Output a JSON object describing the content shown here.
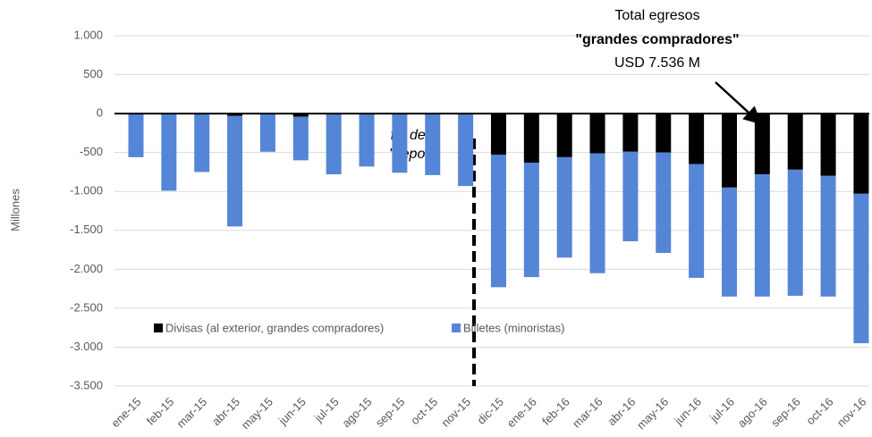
{
  "chart_data": {
    "type": "stacked-bar",
    "y_label": "Millones",
    "annotations": {
      "total_title": "Total egresos",
      "total_subject": "\"grandes compradores\"",
      "total_amount": "USD 7.536 M",
      "cepo_1": "fin del",
      "cepo_2": "\"cepo\""
    },
    "categories": [
      "ene-15",
      "feb-15",
      "mar-15",
      "abr-15",
      "may-15",
      "jun-15",
      "jul-15",
      "ago-15",
      "sep-15",
      "oct-15",
      "nov-15",
      "dic-15",
      "ene-16",
      "feb-16",
      "mar-16",
      "abr-16",
      "may-16",
      "jun-16",
      "jul-16",
      "ago-16",
      "sep-16",
      "oct-16",
      "nov-16"
    ],
    "series": [
      {
        "name": "Divisas (al exterior, grandes compradores)",
        "color": "#000000",
        "values": [
          0,
          0,
          0,
          -30,
          0,
          -40,
          0,
          0,
          0,
          0,
          0,
          -530,
          -630,
          -560,
          -510,
          -490,
          -500,
          -650,
          -950,
          -780,
          -720,
          -800,
          -1030
        ]
      },
      {
        "name": "Billetes (minoristas)",
        "color": "#5585d6",
        "values": [
          -560,
          -990,
          -750,
          -1420,
          -490,
          -560,
          -780,
          -680,
          -760,
          -790,
          -930,
          -1700,
          -1470,
          -1290,
          -1540,
          -1150,
          -1290,
          -1460,
          -1400,
          -1570,
          -1620,
          -1550,
          -1920
        ]
      }
    ],
    "ylim": [
      -3500,
      1000
    ],
    "yticks": [
      {
        "value": 1000,
        "label": "1.000"
      },
      500,
      0,
      -500,
      {
        "value": -1000,
        "label": "-1.000"
      },
      {
        "value": -1500,
        "label": "-1.500"
      },
      {
        "value": -2000,
        "label": "-2.000"
      },
      {
        "value": -2500,
        "label": "-2.500"
      },
      {
        "value": -3000,
        "label": "-3.000"
      },
      {
        "value": -3500,
        "label": "-3.500"
      }
    ],
    "grid": true
  }
}
